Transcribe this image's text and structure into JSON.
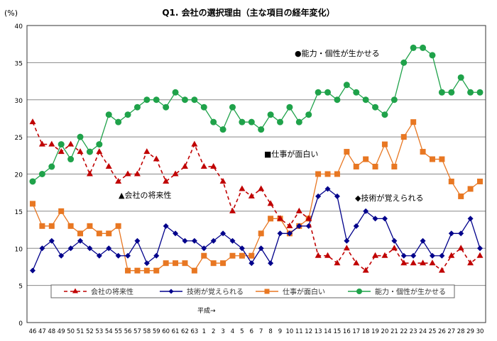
{
  "chart_data": {
    "type": "line",
    "title": "Q1. 会社の選択理由（主な項目の経年変化）",
    "ylabel": "(%)",
    "xlabel": "",
    "era_marker": "平成→",
    "ylim": [
      0,
      40
    ],
    "yticks": [
      0,
      5,
      10,
      15,
      20,
      25,
      30,
      35,
      40
    ],
    "grid": true,
    "legend": "bottom",
    "categories": [
      "46",
      "47",
      "48",
      "49",
      "50",
      "51",
      "52",
      "53",
      "54",
      "55",
      "56",
      "57",
      "58",
      "59",
      "60",
      "61",
      "62",
      "63",
      "1",
      "2",
      "3",
      "4",
      "5",
      "6",
      "7",
      "8",
      "9",
      "10",
      "11",
      "12",
      "13",
      "14",
      "15",
      "16",
      "17",
      "18",
      "19",
      "20",
      "21",
      "22",
      "23",
      "24",
      "25",
      "26",
      "27",
      "28",
      "29",
      "30"
    ],
    "series": [
      {
        "name": "会社の将来性",
        "annotation": "▲会社の将来性",
        "color": "#c00000",
        "marker": "triangle",
        "dashed": true,
        "values": [
          27,
          24,
          24,
          23,
          24,
          23,
          20,
          23,
          21,
          19,
          20,
          20,
          23,
          22,
          19,
          20,
          21,
          24,
          21,
          21,
          19,
          15,
          18,
          17,
          18,
          16,
          14,
          13,
          15,
          14,
          9,
          9,
          8,
          10,
          8,
          7,
          9,
          9,
          10,
          8,
          8,
          8,
          8,
          7,
          9,
          10,
          8,
          9
        ]
      },
      {
        "name": "技術が覚えられる",
        "annotation": "◆技術が覚えられる",
        "color": "#00008b",
        "marker": "diamond",
        "dashed": false,
        "values": [
          7,
          10,
          11,
          9,
          10,
          11,
          10,
          9,
          10,
          9,
          9,
          11,
          8,
          9,
          13,
          12,
          11,
          11,
          10,
          11,
          12,
          11,
          10,
          8,
          10,
          8,
          12,
          12,
          13,
          13,
          17,
          18,
          17,
          11,
          13,
          15,
          14,
          14,
          11,
          9,
          9,
          11,
          9,
          9,
          12,
          12,
          14,
          10
        ]
      },
      {
        "name": "仕事が面白い",
        "annotation": "■仕事が面白い",
        "color": "#e87722",
        "marker": "square",
        "dashed": false,
        "values": [
          16,
          13,
          13,
          15,
          13,
          12,
          13,
          12,
          12,
          13,
          7,
          7,
          7,
          7,
          8,
          8,
          8,
          7,
          9,
          8,
          8,
          9,
          9,
          9,
          12,
          14,
          14,
          12,
          13,
          14,
          20,
          20,
          20,
          23,
          21,
          22,
          21,
          24,
          21,
          25,
          27,
          23,
          22,
          22,
          19,
          17,
          18,
          19
        ]
      },
      {
        "name": "能力・個性が生かせる",
        "annotation": "●能力・個性が生かせる",
        "color": "#1fa24a",
        "marker": "circle",
        "dashed": false,
        "values": [
          19,
          20,
          21,
          24,
          22,
          25,
          23,
          24,
          28,
          27,
          28,
          29,
          30,
          30,
          29,
          31,
          30,
          30,
          29,
          27,
          26,
          29,
          27,
          27,
          26,
          28,
          27,
          29,
          27,
          28,
          31,
          31,
          30,
          32,
          31,
          30,
          29,
          28,
          30,
          35,
          37,
          37,
          36,
          31,
          31,
          33,
          31,
          31
        ]
      }
    ]
  }
}
